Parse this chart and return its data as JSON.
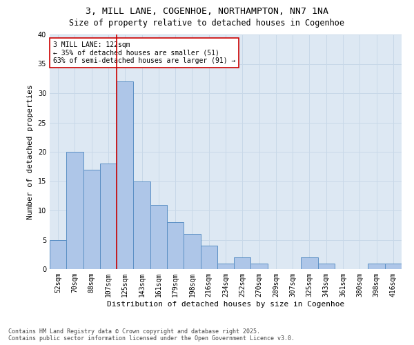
{
  "title_line1": "3, MILL LANE, COGENHOE, NORTHAMPTON, NN7 1NA",
  "title_line2": "Size of property relative to detached houses in Cogenhoe",
  "xlabel": "Distribution of detached houses by size in Cogenhoe",
  "ylabel": "Number of detached properties",
  "bar_labels": [
    "52sqm",
    "70sqm",
    "88sqm",
    "107sqm",
    "125sqm",
    "143sqm",
    "161sqm",
    "179sqm",
    "198sqm",
    "216sqm",
    "234sqm",
    "252sqm",
    "270sqm",
    "289sqm",
    "307sqm",
    "325sqm",
    "343sqm",
    "361sqm",
    "380sqm",
    "398sqm",
    "416sqm"
  ],
  "bar_values": [
    5,
    20,
    17,
    18,
    32,
    15,
    11,
    8,
    6,
    4,
    1,
    2,
    1,
    0,
    0,
    2,
    1,
    0,
    0,
    1,
    1
  ],
  "bar_color": "#aec6e8",
  "bar_edge_color": "#5a8fc4",
  "vline_x_index": 4,
  "vline_color": "#cc0000",
  "annotation_text": "3 MILL LANE: 122sqm\n← 35% of detached houses are smaller (51)\n63% of semi-detached houses are larger (91) →",
  "annotation_box_facecolor": "#ffffff",
  "annotation_box_edgecolor": "#cc0000",
  "ylim": [
    0,
    40
  ],
  "yticks": [
    0,
    5,
    10,
    15,
    20,
    25,
    30,
    35,
    40
  ],
  "grid_color": "#c8d8e8",
  "bg_color": "#dde8f3",
  "footer_line1": "Contains HM Land Registry data © Crown copyright and database right 2025.",
  "footer_line2": "Contains public sector information licensed under the Open Government Licence v3.0.",
  "title_fontsize": 9.5,
  "subtitle_fontsize": 8.5,
  "axis_label_fontsize": 8,
  "tick_fontsize": 7,
  "annotation_fontsize": 7,
  "footer_fontsize": 6
}
